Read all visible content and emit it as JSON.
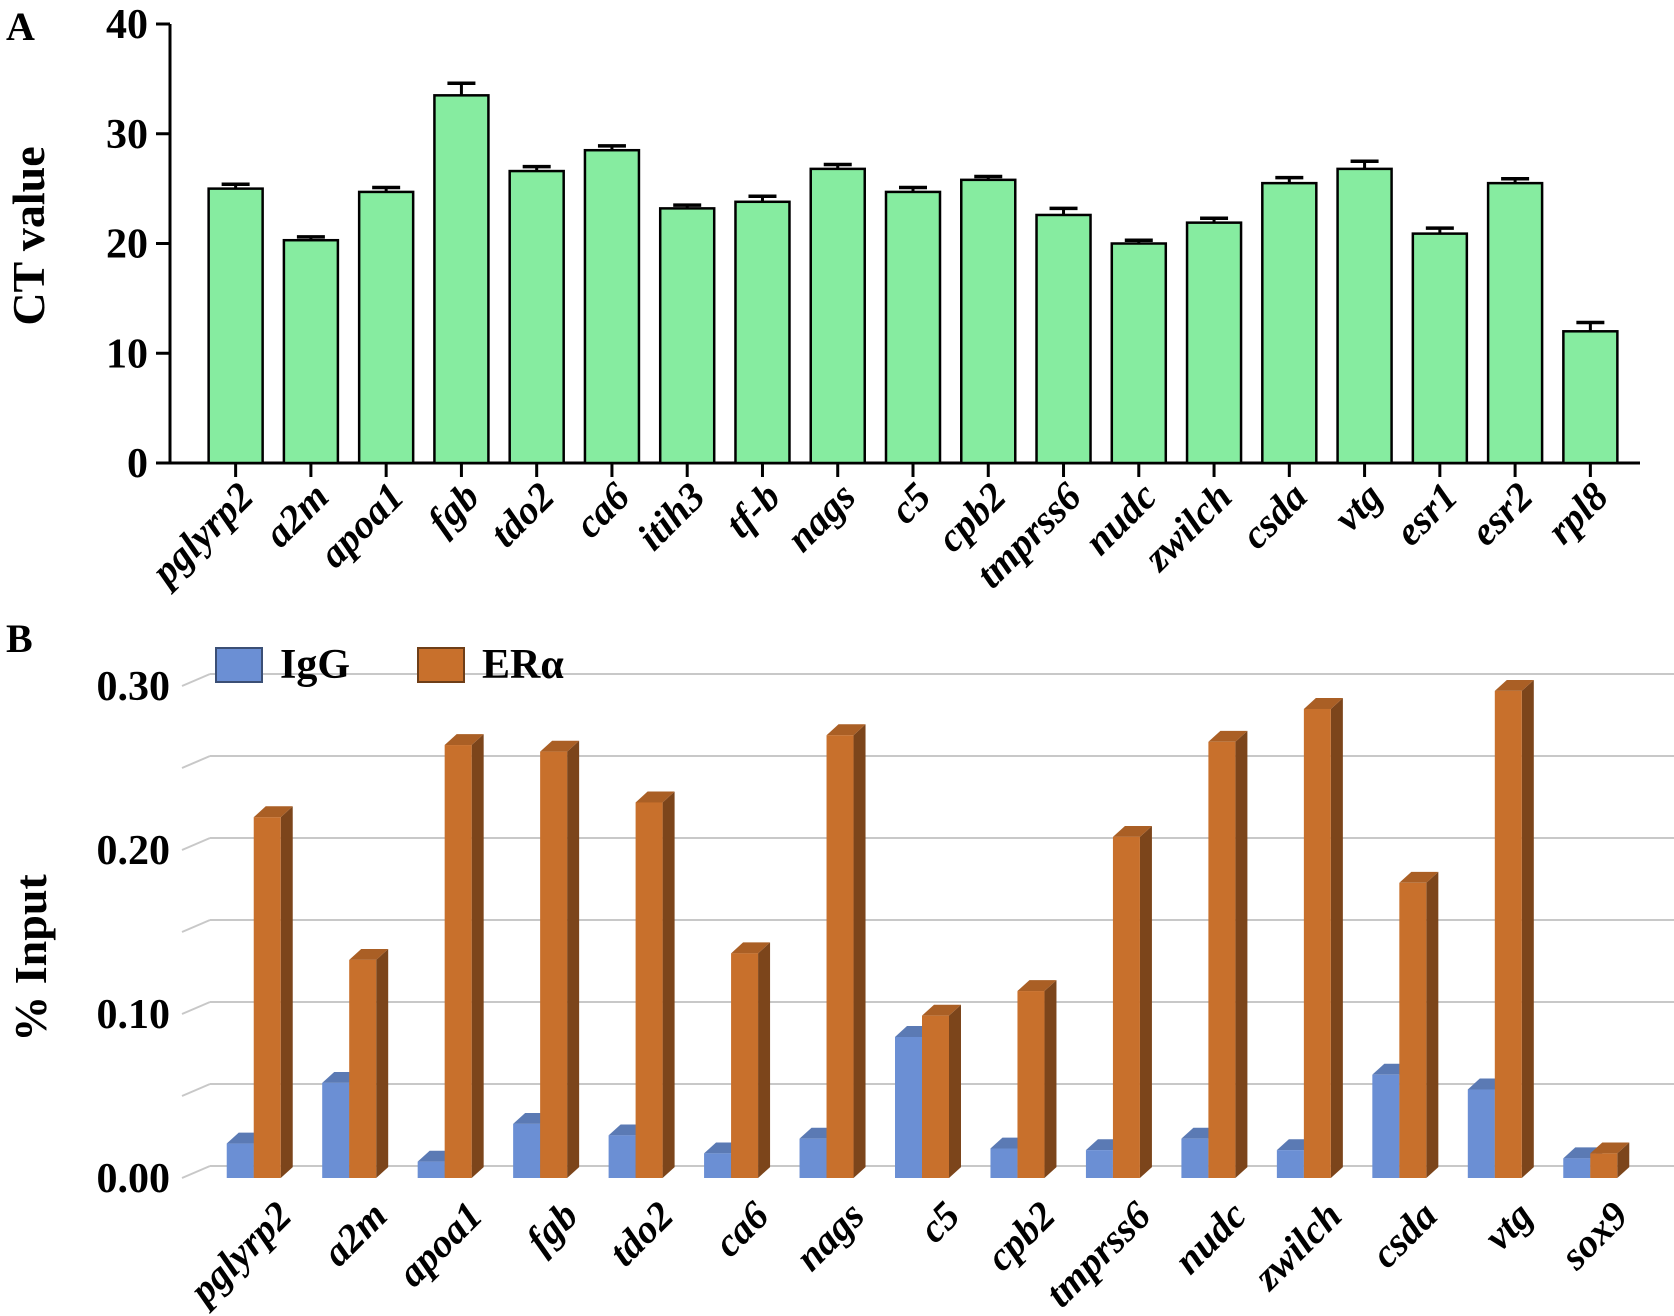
{
  "chart_data": [
    {
      "panel": "A",
      "type": "bar",
      "ylabel": "CT value",
      "ylim": [
        0,
        40
      ],
      "yticks": [
        "0",
        "10",
        "20",
        "30",
        "40"
      ],
      "categories": [
        "pglyrp2",
        "a2m",
        "apoa1",
        "fgb",
        "tdo2",
        "ca6",
        "itih3",
        "tf-b",
        "nags",
        "c5",
        "cpb2",
        "tmprss6",
        "nudc",
        "zwilch",
        "csda",
        "vtg",
        "esr1",
        "esr2",
        "rpl8"
      ],
      "values": [
        25.0,
        20.3,
        24.7,
        33.5,
        26.6,
        28.5,
        23.2,
        23.8,
        26.8,
        24.7,
        25.8,
        22.6,
        20.0,
        21.9,
        25.5,
        26.8,
        20.9,
        25.5,
        12.0
      ],
      "errors": [
        0.4,
        0.3,
        0.4,
        1.1,
        0.4,
        0.4,
        0.3,
        0.5,
        0.4,
        0.4,
        0.3,
        0.6,
        0.3,
        0.4,
        0.5,
        0.7,
        0.5,
        0.4,
        0.8
      ],
      "bar_color": "#86eca0",
      "grid": false
    },
    {
      "panel": "B",
      "type": "bar",
      "ylabel": "% Input",
      "ylim": [
        0,
        0.3
      ],
      "yticks": [
        "0.00",
        "0.10",
        "0.20",
        "0.30"
      ],
      "categories": [
        "pglyrp2",
        "a2m",
        "apoa1",
        "fgb",
        "tdo2",
        "ca6",
        "nags",
        "c5",
        "cpb2",
        "tmprss6",
        "nudc",
        "zwilch",
        "csda",
        "vtg",
        "sox9"
      ],
      "series": [
        {
          "name": "IgG",
          "color": "#6b8fd4",
          "values": [
            0.021,
            0.058,
            0.01,
            0.033,
            0.026,
            0.015,
            0.024,
            0.086,
            0.018,
            0.017,
            0.024,
            0.017,
            0.063,
            0.054,
            0.012
          ]
        },
        {
          "name": "ERα",
          "color": "#c8702c",
          "values": [
            0.22,
            0.133,
            0.264,
            0.26,
            0.229,
            0.137,
            0.27,
            0.099,
            0.114,
            0.208,
            0.266,
            0.286,
            0.18,
            0.297,
            0.015
          ]
        }
      ],
      "legend_position": "top-left",
      "grid": true
    }
  ]
}
